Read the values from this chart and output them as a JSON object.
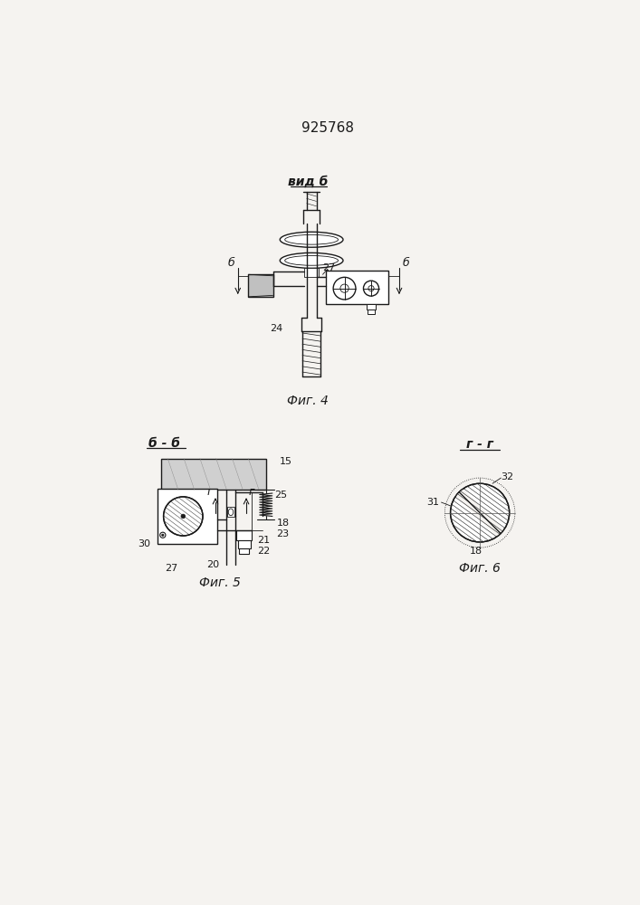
{
  "title": "925768",
  "bg_color": "#f5f3f0",
  "line_color": "#1a1a1a",
  "fig4_label": "вид б",
  "fig4_caption": "Фиг. 4",
  "fig5_label": "б - б",
  "fig5_caption": "Фиг. 5",
  "fig6_label": "г - г",
  "fig6_caption": "Фиг. 6"
}
